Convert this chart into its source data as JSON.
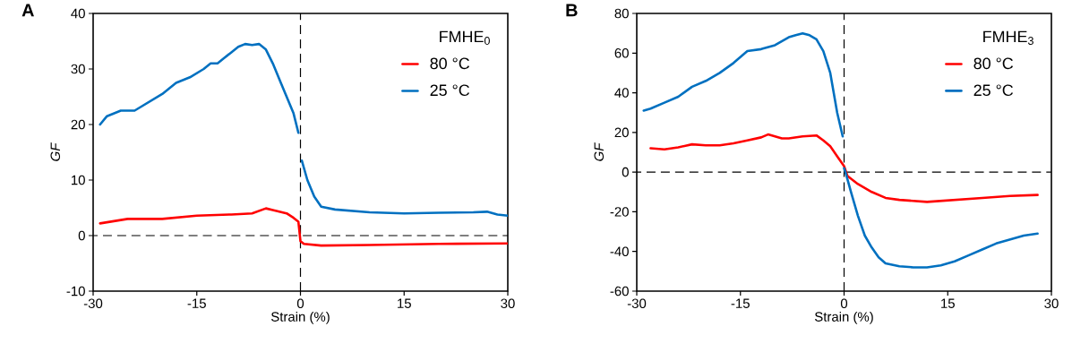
{
  "chart_data": [
    {
      "type": "line",
      "title": "A",
      "xlabel": "Strain (%)",
      "ylabel": "GF",
      "legend_title": "FMHE$_{0}$",
      "legend": "top right",
      "xlim": [
        -30,
        30
      ],
      "ylim": [
        -10,
        40
      ],
      "xticks": [
        -30,
        -15,
        0,
        15,
        30
      ],
      "yticks": [
        -10,
        0,
        10,
        20,
        30,
        40
      ],
      "ref_lines": [
        {
          "axis": "x",
          "value": 0,
          "line_style": "dashed",
          "color": "#000000"
        },
        {
          "axis": "y",
          "value": 0,
          "line_style": "dashed",
          "color": "#000000"
        }
      ],
      "series": [
        {
          "name": "80 °C",
          "color": "#ff0000",
          "x": [
            -29,
            -27,
            -25,
            -20,
            -15,
            -10,
            -7,
            -5,
            -4,
            -2,
            -1,
            -0.3,
            0,
            0.5,
            3,
            10,
            20,
            30
          ],
          "values": [
            2.2,
            2.6,
            3.0,
            3.0,
            3.6,
            3.8,
            4.0,
            4.9,
            4.6,
            4.0,
            3.2,
            2.5,
            -1.0,
            -1.5,
            -1.8,
            -1.7,
            -1.5,
            -1.4
          ]
        },
        {
          "name": "25 °C",
          "color": "#0070c0",
          "x": [
            -29,
            -28,
            -26,
            -24,
            -22,
            -20,
            -18,
            -16,
            -14,
            -13,
            -12,
            -11,
            -10,
            -9,
            -8,
            -7,
            -6,
            -5,
            -4,
            -3,
            -2,
            -1,
            -0.3,
            null,
            0.2,
            1,
            2,
            3,
            5,
            10,
            15,
            20,
            25,
            27,
            28.5,
            30
          ],
          "values": [
            20,
            21.5,
            22.5,
            22.5,
            24,
            25.5,
            27.5,
            28.5,
            30,
            31,
            31,
            32,
            33,
            34,
            34.5,
            34.3,
            34.5,
            33.5,
            31,
            28,
            25,
            22,
            18.5,
            null,
            13.5,
            10,
            7,
            5.2,
            4.7,
            4.2,
            4.0,
            4.1,
            4.2,
            4.3,
            3.8,
            3.6
          ]
        }
      ]
    },
    {
      "type": "line",
      "title": "B",
      "xlabel": "Strain (%)",
      "ylabel": "GF",
      "legend_title": "FMHE$_{3}$",
      "legend": "top right",
      "xlim": [
        -30,
        30
      ],
      "ylim": [
        -60,
        80
      ],
      "xticks": [
        -30,
        -15,
        0,
        15,
        30
      ],
      "yticks": [
        -60,
        -40,
        -20,
        0,
        20,
        40,
        60,
        80
      ],
      "ref_lines": [
        {
          "axis": "x",
          "value": 0,
          "line_style": "dashed",
          "color": "#000000"
        },
        {
          "axis": "y",
          "value": 0,
          "line_style": "dashed",
          "color": "#000000"
        }
      ],
      "series": [
        {
          "name": "80 °C",
          "color": "#ff0000",
          "x": [
            -28,
            -26,
            -24,
            -22,
            -20,
            -18,
            -16,
            -14,
            -12,
            -11,
            -9,
            -8,
            -6,
            -4,
            -3,
            -2,
            -1,
            0,
            0.5,
            2,
            4,
            6,
            8,
            12,
            16,
            20,
            24,
            28
          ],
          "values": [
            12,
            11.5,
            12.5,
            14,
            13.5,
            13.5,
            14.5,
            16,
            17.5,
            19,
            17,
            17,
            18,
            18.5,
            16,
            13,
            8,
            3,
            -2,
            -6,
            -10,
            -13,
            -14,
            -15,
            -14,
            -13,
            -12,
            -11.5
          ]
        },
        {
          "name": "25 °C",
          "color": "#0070c0",
          "x": [
            -29,
            -28,
            -26,
            -24,
            -22,
            -20,
            -18,
            -16,
            -14,
            -12,
            -10,
            -8,
            -7,
            -6,
            -5,
            -4,
            -3,
            -2,
            -1,
            -0.2,
            null,
            0,
            0.2,
            1,
            2,
            3,
            4,
            5,
            6,
            8,
            10,
            12,
            14,
            16,
            18,
            20,
            22,
            24,
            26,
            28
          ],
          "values": [
            31,
            32,
            35,
            38,
            43,
            46,
            50,
            55,
            61,
            62,
            64,
            68,
            69,
            70,
            69,
            67,
            61,
            50,
            30,
            18,
            null,
            2,
            0,
            -10,
            -22,
            -32,
            -38,
            -43,
            -46,
            -47.5,
            -48,
            -48,
            -47,
            -45,
            -42,
            -39,
            -36,
            -34,
            -32,
            -31
          ]
        }
      ]
    }
  ]
}
